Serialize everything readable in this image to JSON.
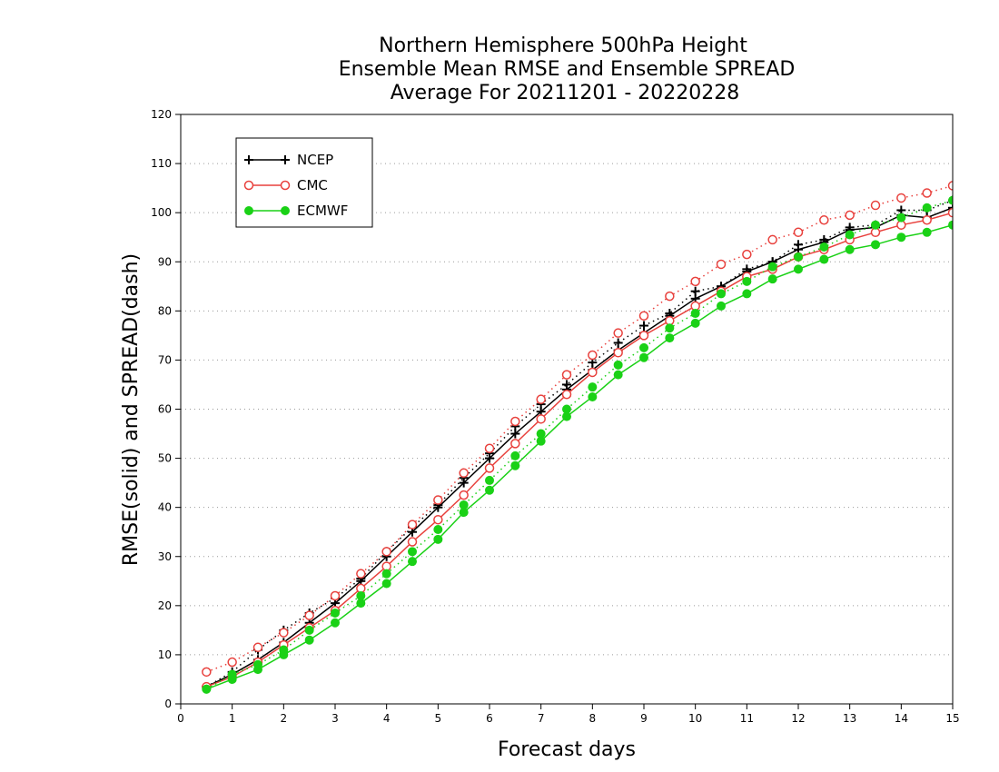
{
  "chart_data": {
    "type": "line",
    "title_lines": [
      "Northern Hemisphere 500hPa Height",
      "Ensemble Mean RMSE and Ensemble SPREAD",
      "Average For 20211201 - 20220228"
    ],
    "xlabel": "Forecast days",
    "ylabel": "RMSE(solid) and SPREAD(dash)",
    "xlim": [
      0,
      15
    ],
    "ylim": [
      0,
      120
    ],
    "xticks": [
      0,
      1,
      2,
      3,
      4,
      5,
      6,
      7,
      8,
      9,
      10,
      11,
      12,
      13,
      14,
      15
    ],
    "yticks": [
      0,
      10,
      20,
      30,
      40,
      50,
      60,
      70,
      80,
      90,
      100,
      110,
      120
    ],
    "grid": "horizontal-dotted",
    "legend_position": "top-left",
    "x": [
      0.5,
      1,
      1.5,
      2,
      2.5,
      3,
      3.5,
      4,
      4.5,
      5,
      5.5,
      6,
      6.5,
      7,
      7.5,
      8,
      8.5,
      9,
      9.5,
      10,
      10.5,
      11,
      11.5,
      12,
      12.5,
      13,
      13.5,
      14,
      14.5,
      15
    ],
    "series": [
      {
        "name": "NCEP",
        "color": "#000000",
        "marker": "plus",
        "rmse": [
          3.5,
          6.0,
          9.0,
          12.5,
          16.5,
          20.5,
          25.0,
          30.0,
          35.0,
          40.0,
          45.0,
          50.0,
          55.0,
          59.5,
          64.0,
          68.0,
          72.0,
          75.5,
          79.0,
          82.5,
          85.0,
          88.0,
          90.0,
          92.5,
          94.0,
          96.5,
          97.0,
          99.5,
          99.0,
          101.0
        ],
        "spread": [
          3.5,
          6.5,
          11.0,
          15.0,
          18.5,
          21.5,
          25.5,
          31.0,
          36.0,
          40.5,
          46.0,
          51.0,
          56.5,
          61.0,
          65.0,
          69.5,
          73.5,
          77.0,
          79.5,
          84.0,
          85.0,
          88.5,
          90.0,
          93.5,
          94.5,
          97.0,
          97.5,
          100.5,
          100.5,
          102.5
        ]
      },
      {
        "name": "CMC",
        "color": "#e8413d",
        "marker": "open-circle",
        "rmse": [
          3.5,
          5.5,
          8.5,
          12.0,
          15.5,
          19.0,
          23.5,
          28.0,
          33.0,
          37.5,
          42.5,
          48.0,
          53.0,
          58.0,
          63.0,
          67.5,
          71.5,
          75.0,
          78.0,
          81.0,
          84.0,
          87.0,
          88.5,
          91.0,
          92.5,
          94.5,
          96.0,
          97.5,
          98.5,
          100.0
        ],
        "spread": [
          6.5,
          8.5,
          11.5,
          14.5,
          18.0,
          22.0,
          26.5,
          31.0,
          36.5,
          41.5,
          47.0,
          52.0,
          57.5,
          62.0,
          67.0,
          71.0,
          75.5,
          79.0,
          83.0,
          86.0,
          89.5,
          91.5,
          94.5,
          96.0,
          98.5,
          99.5,
          101.5,
          103.0,
          104.0,
          105.5
        ]
      },
      {
        "name": "ECMWF",
        "color": "#1ad116",
        "marker": "filled-circle",
        "rmse": [
          3.0,
          5.0,
          7.0,
          10.0,
          13.0,
          16.5,
          20.5,
          24.5,
          29.0,
          33.5,
          39.0,
          43.5,
          48.5,
          53.5,
          58.5,
          62.5,
          67.0,
          70.5,
          74.5,
          77.5,
          81.0,
          83.5,
          86.5,
          88.5,
          90.5,
          92.5,
          93.5,
          95.0,
          96.0,
          97.5
        ],
        "spread": [
          3.0,
          6.0,
          8.0,
          11.0,
          15.0,
          18.5,
          22.0,
          26.5,
          31.0,
          35.5,
          40.5,
          45.5,
          50.5,
          55.0,
          60.0,
          64.5,
          69.0,
          72.5,
          76.5,
          79.5,
          83.5,
          86.0,
          89.0,
          91.0,
          93.0,
          95.5,
          97.5,
          99.0,
          101.0,
          102.5
        ]
      }
    ]
  }
}
